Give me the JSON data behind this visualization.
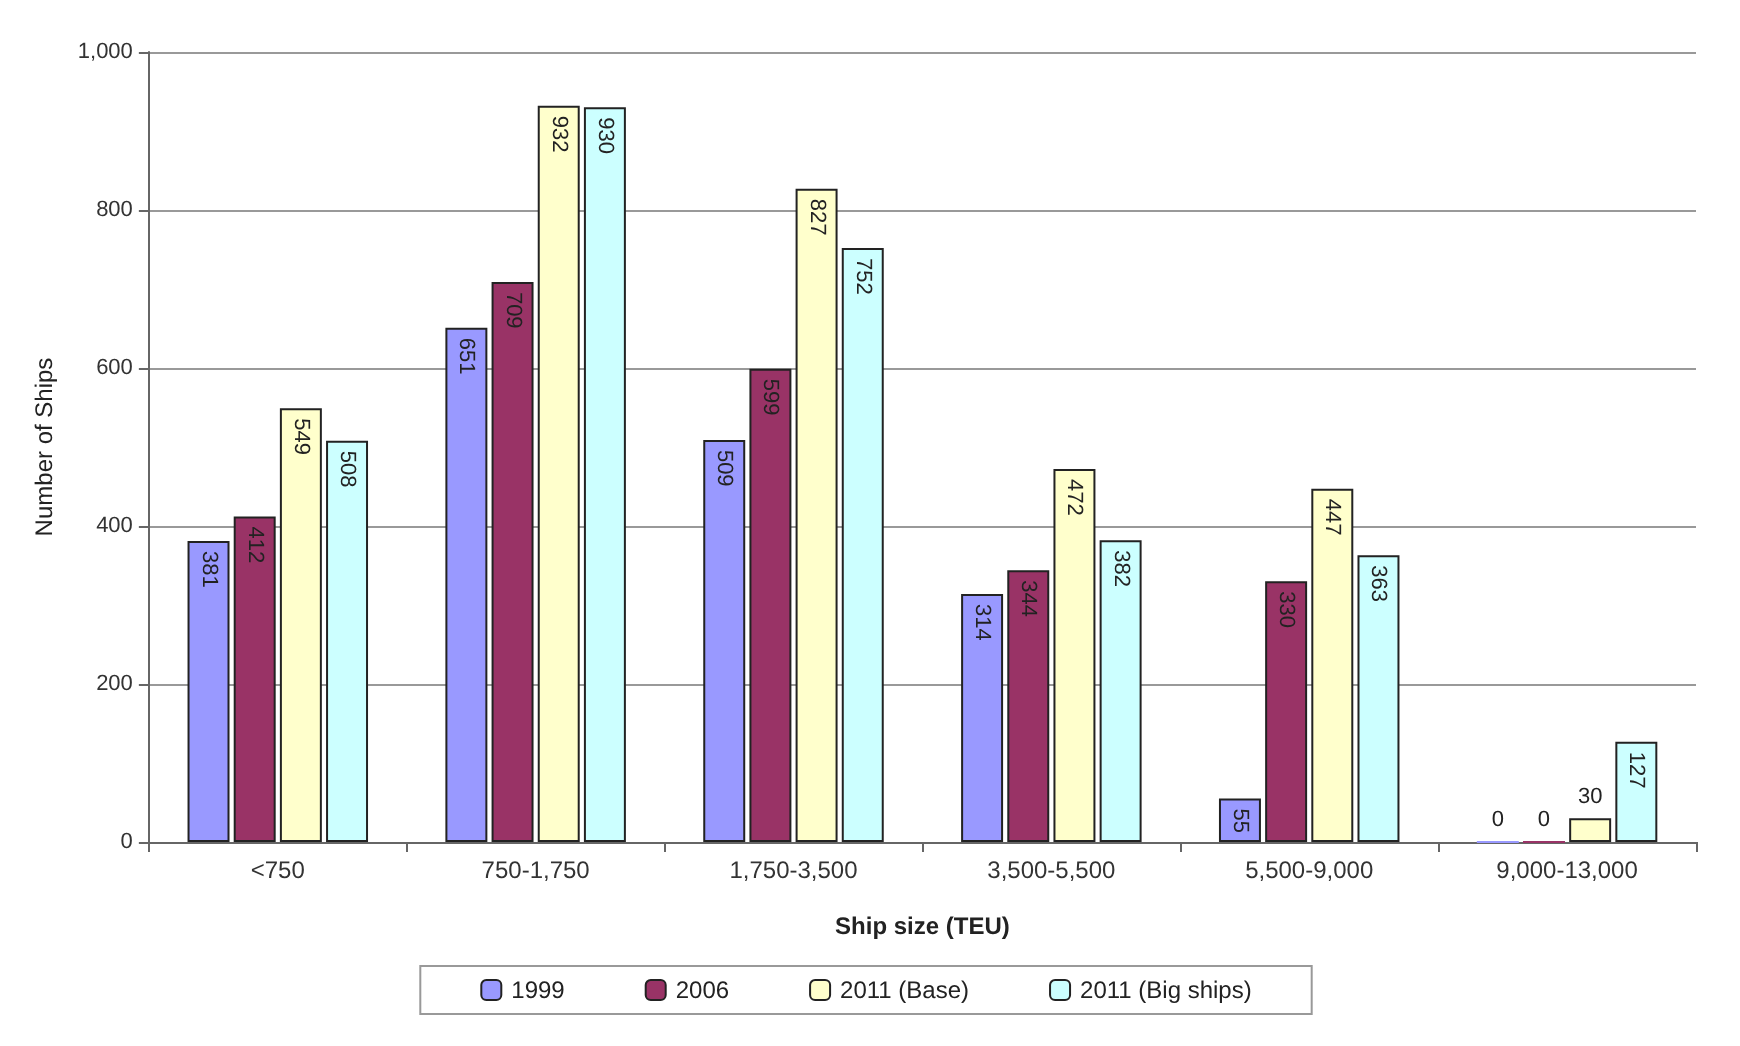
{
  "chart_data": {
    "type": "bar",
    "xlabel": "Ship size (TEU)",
    "ylabel": "Number of Ships",
    "categories": [
      "<750",
      "750-1,750",
      "1,750-3,500",
      "3,500-5,500",
      "5,500-9,000",
      "9,000-13,000"
    ],
    "series": [
      {
        "name": "1999",
        "color": "#9999ff",
        "values": [
          381,
          651,
          509,
          314,
          55,
          0
        ]
      },
      {
        "name": "2006",
        "color": "#993366",
        "values": [
          412,
          709,
          599,
          344,
          330,
          0
        ]
      },
      {
        "name": "2011 (Base)",
        "color": "#ffffcc",
        "values": [
          549,
          932,
          827,
          472,
          447,
          30
        ]
      },
      {
        "name": "2011 (Big ships)",
        "color": "#ccffff",
        "values": [
          508,
          930,
          752,
          382,
          363,
          127
        ]
      }
    ],
    "ylim": [
      0,
      1000
    ],
    "yticks": [
      {
        "value": 0,
        "label": "0"
      },
      {
        "value": 200,
        "label": "200"
      },
      {
        "value": 400,
        "label": "400"
      },
      {
        "value": 600,
        "label": "600"
      },
      {
        "value": 800,
        "label": "800"
      },
      {
        "value": 1000,
        "label": "1,000"
      }
    ],
    "grid": "y",
    "legend": "bottom",
    "data_labels": true
  }
}
